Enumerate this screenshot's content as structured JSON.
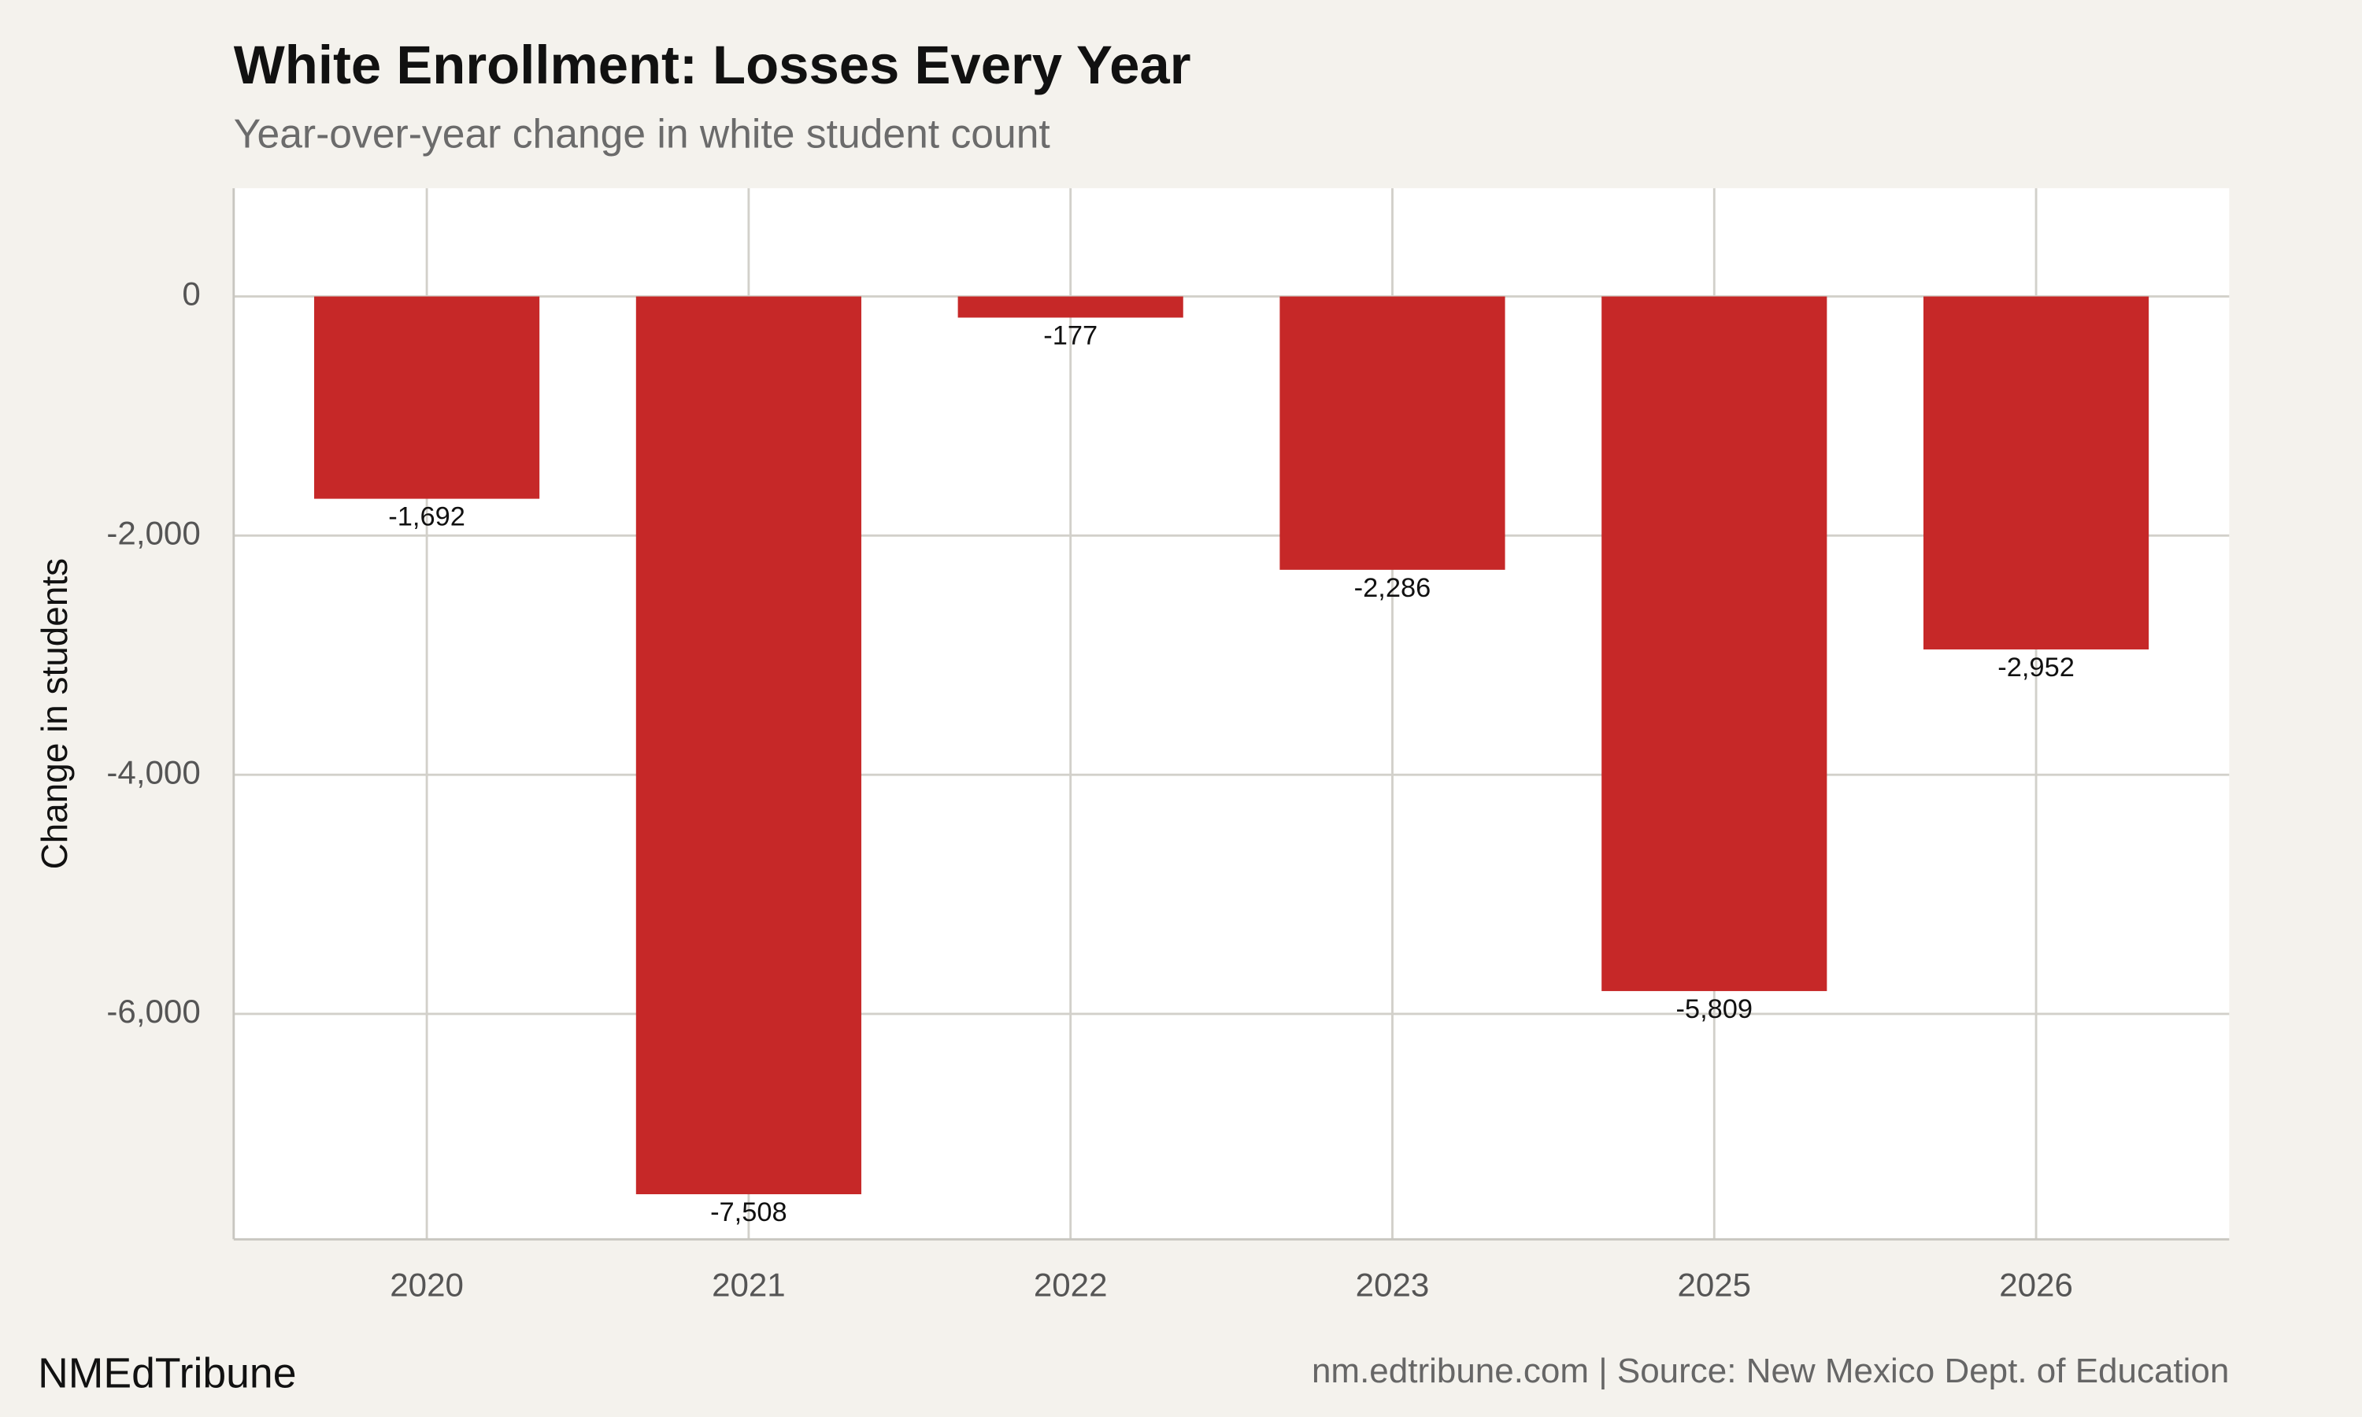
{
  "chart_data": {
    "type": "bar",
    "title": "White Enrollment: Losses Every Year",
    "subtitle": "Year-over-year change in white student count",
    "y_label": "Change in students",
    "categories": [
      "2020",
      "2021",
      "2022",
      "2023",
      "2025",
      "2026"
    ],
    "values": [
      -1692,
      -7508,
      -177,
      -2286,
      -5809,
      -2952
    ],
    "value_labels": [
      "-1,692",
      "-7,508",
      "-177",
      "-2,286",
      "-5,809",
      "-2,952"
    ],
    "color": "#c62828",
    "ylim": [
      -7885,
      905
    ],
    "yticks": [
      {
        "value": -6000,
        "label": "-6,000"
      },
      {
        "value": -4000,
        "label": "-4,000"
      },
      {
        "value": -2000,
        "label": "-2,000"
      },
      0
    ],
    "grid": true,
    "brand": "NMEdTribune",
    "source": "nm.edtribune.com | Source: New Mexico Dept. of Education"
  }
}
